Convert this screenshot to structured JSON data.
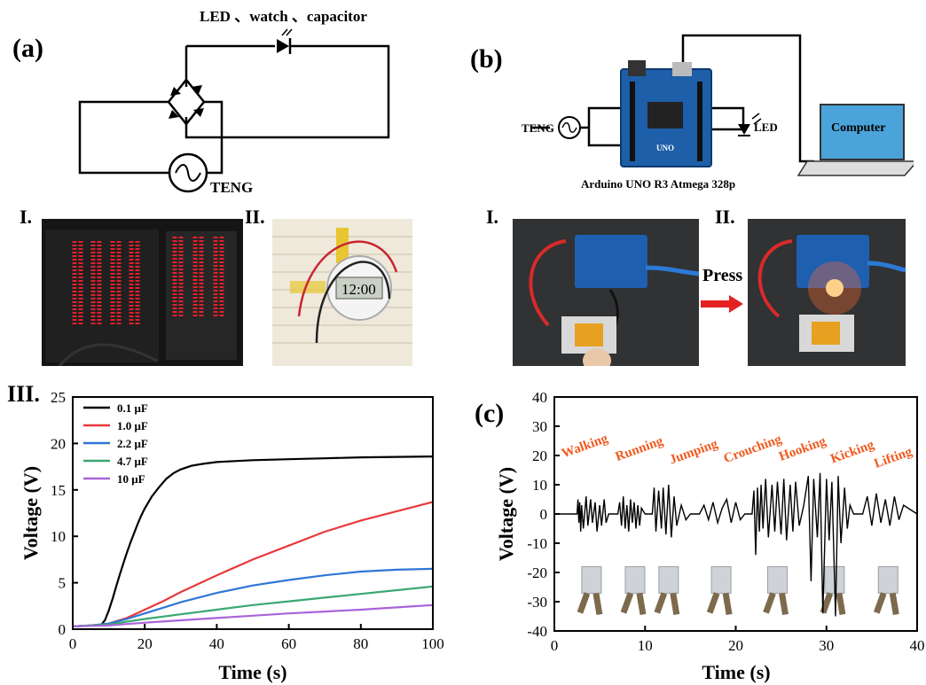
{
  "panels": {
    "a": {
      "label": "(a)",
      "circuit_title": "LED 、watch 、capacitor",
      "source_label": "TENG"
    },
    "b": {
      "label": "(b)",
      "teng_label": "TENG",
      "led_label": "LED",
      "computer_label": "Computer",
      "board_label": "Arduino UNO R3 Atmega 328p"
    },
    "photos": {
      "a_I": "I.",
      "a_II": "II.",
      "b_I": "I.",
      "b_II": "II.",
      "press_label": "Press",
      "watch_display": "12:00"
    },
    "a_III": {
      "label": "III."
    },
    "c": {
      "label": "(c)"
    }
  },
  "colors": {
    "black": "#000000",
    "red": "#e8393b",
    "blue": "#2f76d6",
    "green": "#3aa870",
    "purple": "#a864d8",
    "motion_text": "#f05a1e",
    "arrow": "#e52222",
    "photo_dark": "#1a1a1a"
  },
  "chart_data": [
    {
      "type": "line",
      "title": "",
      "xlabel": "Time (s)",
      "ylabel": "Voltage (V)",
      "xlim": [
        0,
        100
      ],
      "ylim": [
        0,
        25
      ],
      "xticks": [
        "0",
        "20",
        "40",
        "60",
        "80",
        "100"
      ],
      "yticks": [
        "0",
        "5",
        "10",
        "15",
        "20",
        "25"
      ],
      "legend_position": "top-left",
      "series": [
        {
          "name": "0.1 μF",
          "color": "#000000",
          "x": [
            0,
            5,
            8,
            9,
            10,
            11,
            12,
            13,
            14,
            15,
            16,
            17,
            18,
            19,
            20,
            22,
            24,
            26,
            28,
            30,
            33,
            36,
            40,
            45,
            50,
            60,
            70,
            80,
            90,
            100
          ],
          "y": [
            0.3,
            0.4,
            0.5,
            1.0,
            2.0,
            3.2,
            4.5,
            5.8,
            7.0,
            8.2,
            9.3,
            10.3,
            11.3,
            12.2,
            13.0,
            14.3,
            15.3,
            16.2,
            16.8,
            17.2,
            17.6,
            17.8,
            18.0,
            18.1,
            18.2,
            18.3,
            18.4,
            18.5,
            18.55,
            18.6
          ]
        },
        {
          "name": "1.0 μF",
          "color": "#e8393b",
          "x": [
            0,
            5,
            10,
            15,
            20,
            25,
            30,
            40,
            50,
            60,
            70,
            80,
            90,
            100
          ],
          "y": [
            0.3,
            0.4,
            0.6,
            1.2,
            2.1,
            3.0,
            4.0,
            5.8,
            7.5,
            9.0,
            10.5,
            11.7,
            12.7,
            13.7
          ]
        },
        {
          "name": "2.2 μF",
          "color": "#2f76d6",
          "x": [
            0,
            5,
            10,
            15,
            20,
            25,
            30,
            40,
            50,
            60,
            70,
            80,
            90,
            100
          ],
          "y": [
            0.3,
            0.4,
            0.6,
            1.1,
            1.7,
            2.3,
            2.9,
            3.9,
            4.7,
            5.3,
            5.8,
            6.2,
            6.4,
            6.5
          ]
        },
        {
          "name": "4.7 μF",
          "color": "#3aa870",
          "x": [
            0,
            5,
            10,
            15,
            20,
            30,
            40,
            50,
            60,
            70,
            80,
            90,
            100
          ],
          "y": [
            0.3,
            0.4,
            0.5,
            0.8,
            1.1,
            1.6,
            2.1,
            2.6,
            3.0,
            3.4,
            3.8,
            4.2,
            4.6
          ]
        },
        {
          "name": "10  μF",
          "color": "#a864d8",
          "x": [
            0,
            5,
            10,
            15,
            20,
            30,
            40,
            50,
            60,
            70,
            80,
            90,
            100
          ],
          "y": [
            0.3,
            0.35,
            0.4,
            0.55,
            0.7,
            0.95,
            1.2,
            1.45,
            1.7,
            1.9,
            2.1,
            2.35,
            2.6
          ]
        }
      ]
    },
    {
      "type": "line",
      "title": "",
      "xlabel": "Time (s)",
      "ylabel": "Voltage (V)",
      "xlim": [
        0,
        40
      ],
      "ylim": [
        -40,
        40
      ],
      "xticks": [
        "0",
        "10",
        "20",
        "30",
        "40"
      ],
      "yticks": [
        "-40",
        "-30",
        "-20",
        "-10",
        "0",
        "10",
        "20",
        "30",
        "40"
      ],
      "annotations": [
        "Walking",
        "Running",
        "Jumping",
        "Crouching",
        "Hooking",
        "Kicking",
        "Lifting"
      ],
      "series": [
        {
          "name": "",
          "color": "#000000",
          "x": [
            0,
            2.5,
            2.6,
            2.7,
            2.8,
            2.9,
            3.0,
            3.2,
            3.5,
            3.7,
            4.0,
            4.2,
            4.5,
            4.7,
            5.0,
            5.2,
            5.5,
            5.7,
            6.0,
            7.0,
            7.2,
            7.4,
            7.6,
            7.8,
            8.0,
            8.2,
            8.4,
            8.6,
            8.8,
            9.0,
            9.2,
            9.4,
            9.6,
            10.0,
            10.8,
            11.0,
            11.2,
            11.5,
            11.8,
            12.0,
            12.3,
            12.6,
            12.9,
            13.2,
            13.5,
            14.0,
            14.5,
            15.0,
            16.0,
            16.5,
            17.0,
            17.5,
            18.0,
            18.5,
            19.0,
            19.5,
            20.0,
            20.5,
            21.0,
            21.8,
            22.0,
            22.2,
            22.4,
            22.6,
            22.8,
            23.0,
            23.3,
            23.6,
            24.0,
            24.3,
            24.6,
            25.0,
            25.3,
            25.6,
            26.0,
            26.3,
            26.6,
            27.0,
            27.5,
            28.0,
            28.3,
            28.6,
            29.0,
            29.3,
            29.6,
            30.0,
            30.3,
            30.6,
            31.0,
            31.3,
            31.6,
            32.0,
            32.3,
            32.6,
            33.0,
            34.0,
            34.5,
            35.0,
            35.5,
            36.0,
            36.5,
            37.0,
            37.5,
            38.0,
            38.5,
            40.0
          ],
          "y": [
            0,
            0,
            5,
            -3,
            4,
            -6,
            3,
            -5,
            6,
            -4,
            5,
            -3,
            4,
            -6,
            3,
            -4,
            5,
            -3,
            0,
            0,
            4,
            -4,
            6,
            -5,
            3,
            -6,
            5,
            -3,
            4,
            -5,
            3,
            -4,
            2,
            0,
            0,
            9,
            -6,
            8,
            -5,
            9,
            -7,
            10,
            -8,
            6,
            -4,
            3,
            -2,
            0,
            0,
            3,
            -2,
            4,
            -3,
            2,
            5,
            -3,
            4,
            -2,
            0,
            0,
            8,
            -14,
            9,
            -6,
            10,
            -5,
            12,
            -8,
            10,
            -6,
            11,
            -7,
            12,
            -9,
            10,
            -6,
            11,
            -4,
            3,
            13,
            -23,
            12,
            -8,
            14,
            -34,
            12,
            -9,
            11,
            -35,
            13,
            -10,
            9,
            -5,
            3,
            0,
            0,
            6,
            -4,
            7,
            -3,
            5,
            -4,
            6,
            -2,
            3,
            0
          ]
        }
      ]
    }
  ]
}
